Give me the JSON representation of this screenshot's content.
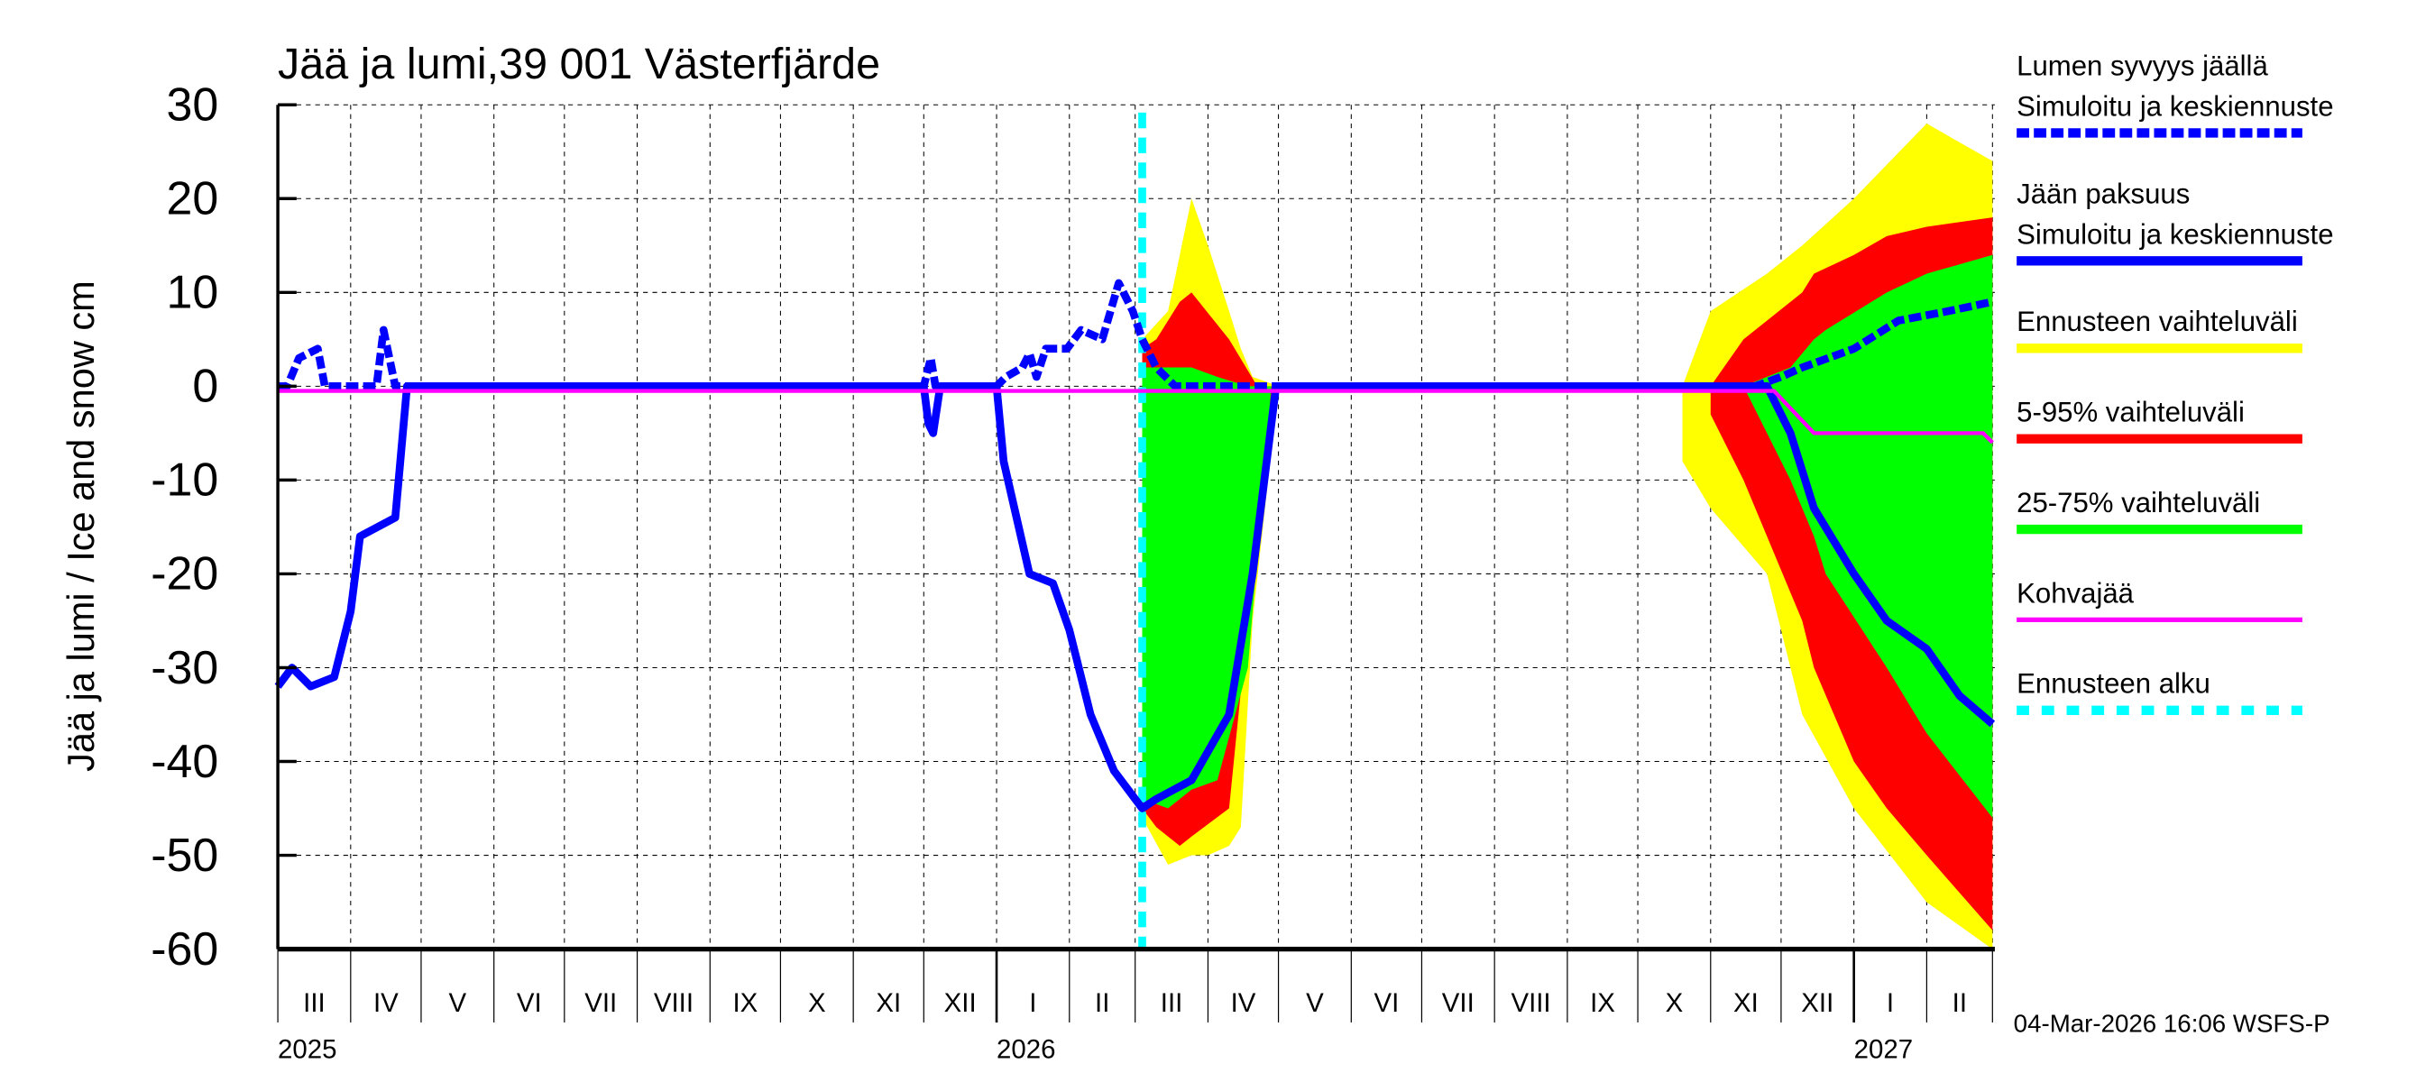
{
  "chart_data": {
    "type": "area",
    "title": "Jää ja lumi,39 001 Västerfjärde",
    "ylabel": "Jää ja lumi / Ice and snow    cm",
    "ylim": [
      -60,
      30
    ],
    "yticks": [
      30,
      20,
      10,
      0,
      -10,
      -20,
      -30,
      -40,
      -50,
      -60
    ],
    "xlim": [
      "2025-03-01",
      "2027-03-02"
    ],
    "grid": true,
    "legend_position": "right",
    "month_labels": [
      "III",
      "IV",
      "V",
      "VI",
      "VII",
      "VIII",
      "IX",
      "X",
      "XI",
      "XII",
      "I",
      "II",
      "III",
      "IV",
      "V",
      "VI",
      "VII",
      "VIII",
      "IX",
      "X",
      "XI",
      "XII",
      "I",
      "II"
    ],
    "year_labels": [
      {
        "label": "2025",
        "date": "2025-03-01"
      },
      {
        "label": "2026",
        "date": "2026-01-01"
      },
      {
        "label": "2027",
        "date": "2027-01-01"
      }
    ],
    "footer": "04-Mar-2026 16:06 WSFS-P",
    "forecast_start": "2026-03-04",
    "colors": {
      "snow": "#0000ff",
      "ice": "#0000ff",
      "range": "#ffff00",
      "p5_95": "#ff0000",
      "p25_75": "#00ff00",
      "slush": "#ff00ff",
      "forecast_start": "#00ffff"
    },
    "legend": [
      {
        "label": "Lumen syvyys jäällä",
        "label2": "Simuloitu ja keskiennuste",
        "color": "#0000ff",
        "style": "dashed"
      },
      {
        "label": "Jään paksuus",
        "label2": "Simuloitu ja keskiennuste",
        "color": "#0000ff",
        "style": "solid"
      },
      {
        "label": "Ennusteen vaihteluväli",
        "color": "#ffff00",
        "style": "solid"
      },
      {
        "label": "5-95% vaihteluväli",
        "color": "#ff0000",
        "style": "solid"
      },
      {
        "label": "25-75% vaihteluväli",
        "color": "#00ff00",
        "style": "solid"
      },
      {
        "label": "Kohvajää",
        "color": "#ff00ff",
        "style": "thin"
      },
      {
        "label": "Ennusteen alku",
        "color": "#00ffff",
        "style": "dotted"
      }
    ],
    "bands": {
      "range": [
        [
          [
            "2026-03-04",
            5,
            -46
          ],
          [
            "2026-03-15",
            8,
            -51
          ],
          [
            "2026-03-25",
            20,
            -50
          ],
          [
            "2026-04-01",
            15,
            -50
          ],
          [
            "2026-04-10",
            8,
            -49
          ],
          [
            "2026-04-15",
            4,
            -47
          ],
          [
            "2026-04-20",
            1,
            -25
          ],
          [
            "2026-05-01",
            0,
            0
          ]
        ],
        [
          [
            "2026-10-20",
            0,
            -8
          ],
          [
            "2026-11-01",
            8,
            -13
          ],
          [
            "2026-11-25",
            12,
            -20
          ],
          [
            "2026-12-10",
            15,
            -35
          ],
          [
            "2027-01-01",
            20,
            -45
          ],
          [
            "2027-02-01",
            28,
            -55
          ],
          [
            "2027-03-01",
            24,
            -60
          ]
        ]
      ],
      "p5_95": [
        [
          [
            "2026-03-04",
            4,
            -45
          ],
          [
            "2026-03-10",
            5,
            -47
          ],
          [
            "2026-03-20",
            9,
            -49
          ],
          [
            "2026-03-25",
            10,
            -48
          ],
          [
            "2026-04-10",
            5,
            -45
          ],
          [
            "2026-04-22",
            0,
            -15
          ],
          [
            "2026-04-30",
            0,
            0
          ]
        ],
        [
          [
            "2026-11-01",
            0,
            -3
          ],
          [
            "2026-11-15",
            5,
            -10
          ],
          [
            "2026-12-10",
            10,
            -25
          ],
          [
            "2026-12-15",
            12,
            -30
          ],
          [
            "2027-01-01",
            14,
            -40
          ],
          [
            "2027-01-15",
            16,
            -45
          ],
          [
            "2027-02-01",
            17,
            -50
          ],
          [
            "2027-03-01",
            18,
            -58
          ]
        ]
      ],
      "p25_75": [
        [
          [
            "2026-03-04",
            2,
            -44
          ],
          [
            "2026-03-15",
            2,
            -45
          ],
          [
            "2026-03-25",
            2,
            -43
          ],
          [
            "2026-04-05",
            1,
            -42
          ],
          [
            "2026-04-18",
            0,
            -30
          ],
          [
            "2026-04-28",
            0,
            0
          ]
        ],
        [
          [
            "2026-11-15",
            0,
            0
          ],
          [
            "2026-12-05",
            2,
            -10
          ],
          [
            "2026-12-15",
            5,
            -16
          ],
          [
            "2026-12-20",
            6,
            -20
          ],
          [
            "2027-01-15",
            10,
            -30
          ],
          [
            "2027-02-01",
            12,
            -37
          ],
          [
            "2027-03-01",
            14,
            -46
          ]
        ]
      ]
    },
    "series": [
      {
        "name": "Lumen syvyys jäällä",
        "style": "dashed",
        "points": [
          [
            "2025-03-01",
            0
          ],
          [
            "2025-03-05",
            0
          ],
          [
            "2025-03-10",
            3
          ],
          [
            "2025-03-18",
            4
          ],
          [
            "2025-03-21",
            0
          ],
          [
            "2025-04-12",
            0
          ],
          [
            "2025-04-15",
            6
          ],
          [
            "2025-04-20",
            0
          ],
          [
            "2025-12-01",
            0
          ],
          [
            "2025-12-04",
            3
          ],
          [
            "2025-12-06",
            0
          ],
          [
            "2026-01-01",
            0
          ],
          [
            "2026-01-05",
            1
          ],
          [
            "2026-01-12",
            2
          ],
          [
            "2026-01-15",
            3.5
          ],
          [
            "2026-01-18",
            1
          ],
          [
            "2026-01-22",
            4
          ],
          [
            "2026-01-31",
            4
          ],
          [
            "2026-02-06",
            6
          ],
          [
            "2026-02-15",
            5
          ],
          [
            "2026-02-22",
            11
          ],
          [
            "2026-02-28",
            8
          ],
          [
            "2026-03-04",
            5
          ],
          [
            "2026-03-10",
            2
          ],
          [
            "2026-03-18",
            0
          ],
          [
            "2026-11-20",
            0
          ],
          [
            "2026-12-01",
            1
          ],
          [
            "2026-12-10",
            2
          ],
          [
            "2027-01-01",
            4
          ],
          [
            "2027-01-20",
            7
          ],
          [
            "2027-02-10",
            8
          ],
          [
            "2027-03-01",
            9
          ]
        ]
      },
      {
        "name": "Jään paksuus",
        "style": "solid",
        "points": [
          [
            "2025-03-01",
            -32
          ],
          [
            "2025-03-07",
            -30
          ],
          [
            "2025-03-15",
            -32
          ],
          [
            "2025-03-25",
            -31
          ],
          [
            "2025-04-01",
            -24
          ],
          [
            "2025-04-05",
            -16
          ],
          [
            "2025-04-20",
            -14
          ],
          [
            "2025-04-25",
            0
          ],
          [
            "2025-12-01",
            0
          ],
          [
            "2025-12-03",
            -4
          ],
          [
            "2025-12-05",
            -5
          ],
          [
            "2025-12-08",
            0
          ],
          [
            "2026-01-01",
            0
          ],
          [
            "2026-01-04",
            -8
          ],
          [
            "2026-01-15",
            -20
          ],
          [
            "2026-01-25",
            -21
          ],
          [
            "2026-02-01",
            -26
          ],
          [
            "2026-02-10",
            -35
          ],
          [
            "2026-02-20",
            -41
          ],
          [
            "2026-03-01",
            -44
          ],
          [
            "2026-03-04",
            -45
          ],
          [
            "2026-03-10",
            -44
          ],
          [
            "2026-03-25",
            -42
          ],
          [
            "2026-04-10",
            -35
          ],
          [
            "2026-04-20",
            -20
          ],
          [
            "2026-04-30",
            0
          ],
          [
            "2026-11-25",
            0
          ],
          [
            "2026-12-05",
            -5
          ],
          [
            "2026-12-15",
            -13
          ],
          [
            "2027-01-01",
            -20
          ],
          [
            "2027-01-15",
            -25
          ],
          [
            "2027-02-01",
            -28
          ],
          [
            "2027-02-15",
            -33
          ],
          [
            "2027-03-01",
            -36
          ]
        ]
      },
      {
        "name": "Kohvajää",
        "style": "thin",
        "points": [
          [
            "2025-03-01",
            -0.5
          ],
          [
            "2026-11-28",
            -0.5
          ],
          [
            "2026-12-15",
            -5
          ],
          [
            "2027-02-25",
            -5
          ],
          [
            "2027-03-01",
            -6
          ]
        ]
      }
    ]
  }
}
